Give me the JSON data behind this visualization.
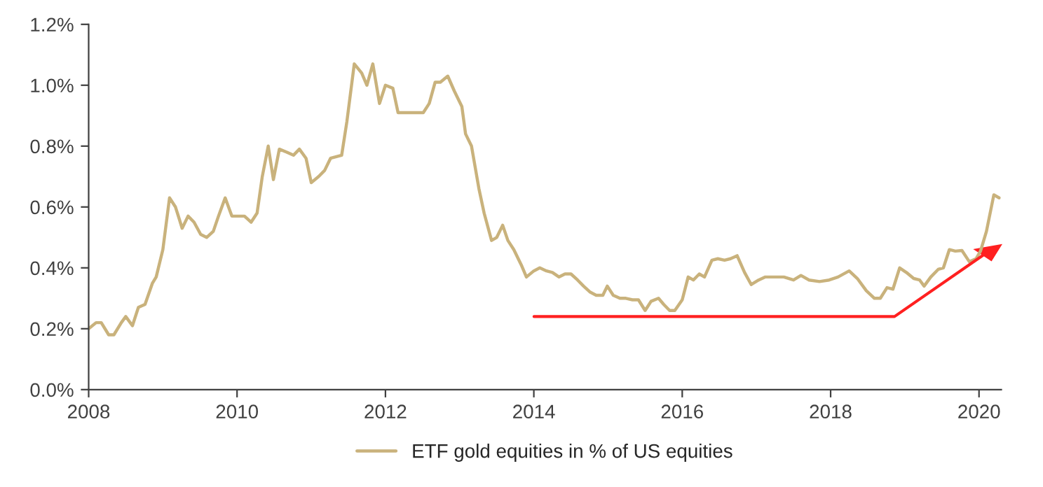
{
  "chart_data": {
    "type": "line",
    "xlim": [
      2008,
      2020.3
    ],
    "xticks": [
      2008,
      2010,
      2012,
      2014,
      2016,
      2018,
      2020
    ],
    "ylim": [
      0,
      1.2
    ],
    "yticks": [
      {
        "value": 0,
        "label": "0.0%"
      },
      {
        "value": 0.2,
        "label": "0.2%"
      },
      {
        "value": 0.4,
        "label": "0.4%"
      },
      {
        "value": 0.6,
        "label": "0.6%"
      },
      {
        "value": 0.8,
        "label": "0.8%"
      },
      {
        "value": 1.0,
        "label": "1.0%"
      },
      {
        "value": 1.2,
        "label": "1.2%"
      }
    ],
    "grid": false,
    "legend": "bottom",
    "series": [
      {
        "name": "ETF gold equities in % of US equities",
        "color": "#c9b27c",
        "x": [
          2008.0,
          2008.1,
          2008.17,
          2008.27,
          2008.34,
          2008.44,
          2008.5,
          2008.59,
          2008.67,
          2008.76,
          2008.86,
          2008.91,
          2009.0,
          2009.09,
          2009.17,
          2009.26,
          2009.34,
          2009.42,
          2009.51,
          2009.59,
          2009.68,
          2009.75,
          2009.84,
          2009.93,
          2010.02,
          2010.1,
          2010.19,
          2010.27,
          2010.34,
          2010.42,
          2010.49,
          2010.57,
          2010.67,
          2010.76,
          2010.84,
          2010.93,
          2011.0,
          2011.1,
          2011.18,
          2011.26,
          2011.41,
          2011.48,
          2011.58,
          2011.68,
          2011.75,
          2011.83,
          2011.92,
          2012.0,
          2012.1,
          2012.17,
          2012.29,
          2012.38,
          2012.51,
          2012.59,
          2012.67,
          2012.74,
          2012.84,
          2012.93,
          2013.03,
          2013.08,
          2013.16,
          2013.26,
          2013.33,
          2013.43,
          2013.5,
          2013.58,
          2013.65,
          2013.73,
          2013.83,
          2013.9,
          2014.0,
          2014.08,
          2014.17,
          2014.25,
          2014.34,
          2014.42,
          2014.5,
          2014.59,
          2014.67,
          2014.76,
          2014.84,
          2014.93,
          2014.99,
          2015.07,
          2015.16,
          2015.24,
          2015.33,
          2015.41,
          2015.5,
          2015.58,
          2015.68,
          2015.75,
          2015.83,
          2015.9,
          2016.0,
          2016.08,
          2016.15,
          2016.23,
          2016.3,
          2016.4,
          2016.48,
          2016.57,
          2016.65,
          2016.74,
          2016.84,
          2016.93,
          2017.03,
          2017.12,
          2017.24,
          2017.37,
          2017.5,
          2017.6,
          2017.71,
          2017.85,
          2017.98,
          2018.1,
          2018.25,
          2018.36,
          2018.48,
          2018.59,
          2018.67,
          2018.76,
          2018.84,
          2018.93,
          2019.02,
          2019.12,
          2019.2,
          2019.26,
          2019.35,
          2019.45,
          2019.52,
          2019.6,
          2019.68,
          2019.77,
          2019.87,
          2019.96,
          2020.02,
          2020.1,
          2020.2,
          2020.27
        ],
        "values": [
          0.2,
          0.22,
          0.22,
          0.18,
          0.18,
          0.22,
          0.24,
          0.21,
          0.27,
          0.28,
          0.35,
          0.37,
          0.46,
          0.63,
          0.6,
          0.53,
          0.57,
          0.55,
          0.51,
          0.5,
          0.52,
          0.57,
          0.63,
          0.57,
          0.57,
          0.57,
          0.55,
          0.58,
          0.7,
          0.8,
          0.69,
          0.79,
          0.78,
          0.77,
          0.79,
          0.76,
          0.68,
          0.7,
          0.72,
          0.76,
          0.77,
          0.88,
          1.07,
          1.04,
          1.0,
          1.07,
          0.94,
          1.0,
          0.99,
          0.91,
          0.91,
          0.91,
          0.91,
          0.94,
          1.01,
          1.01,
          1.03,
          0.98,
          0.93,
          0.84,
          0.8,
          0.66,
          0.58,
          0.49,
          0.5,
          0.54,
          0.49,
          0.46,
          0.41,
          0.37,
          0.39,
          0.4,
          0.39,
          0.385,
          0.37,
          0.38,
          0.38,
          0.36,
          0.34,
          0.32,
          0.31,
          0.31,
          0.34,
          0.31,
          0.3,
          0.3,
          0.295,
          0.295,
          0.26,
          0.29,
          0.3,
          0.28,
          0.26,
          0.26,
          0.295,
          0.37,
          0.36,
          0.38,
          0.37,
          0.425,
          0.43,
          0.425,
          0.43,
          0.44,
          0.385,
          0.345,
          0.36,
          0.37,
          0.37,
          0.37,
          0.36,
          0.375,
          0.36,
          0.355,
          0.36,
          0.37,
          0.39,
          0.365,
          0.325,
          0.3,
          0.3,
          0.335,
          0.33,
          0.4,
          0.385,
          0.365,
          0.36,
          0.34,
          0.37,
          0.395,
          0.4,
          0.46,
          0.455,
          0.457,
          0.42,
          0.43,
          0.455,
          0.52,
          0.64,
          0.63
        ]
      }
    ]
  }
}
